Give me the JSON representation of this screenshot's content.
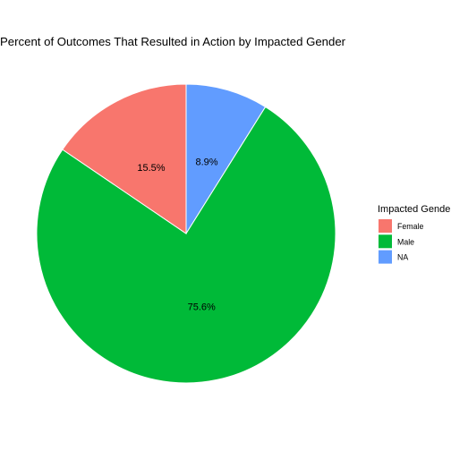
{
  "chart_data": {
    "type": "pie",
    "title": "Percent of Outcomes That Resulted in Action by Impacted Gender",
    "legend": {
      "title": "Impacted Gender",
      "placement": "right"
    },
    "slices": [
      {
        "name": "NA",
        "value": 8.9,
        "label": "8.9%",
        "color": "#619CFF"
      },
      {
        "name": "Male",
        "value": 75.6,
        "label": "75.6%",
        "color": "#00BA38"
      },
      {
        "name": "Female",
        "value": 15.5,
        "label": "15.5%",
        "color": "#F8766D"
      }
    ],
    "legend_order": [
      "Female",
      "Male",
      "NA"
    ],
    "start": "12 o'clock",
    "direction": "clockwise",
    "slice_border_color": "#FFFFFF",
    "grid": false
  }
}
